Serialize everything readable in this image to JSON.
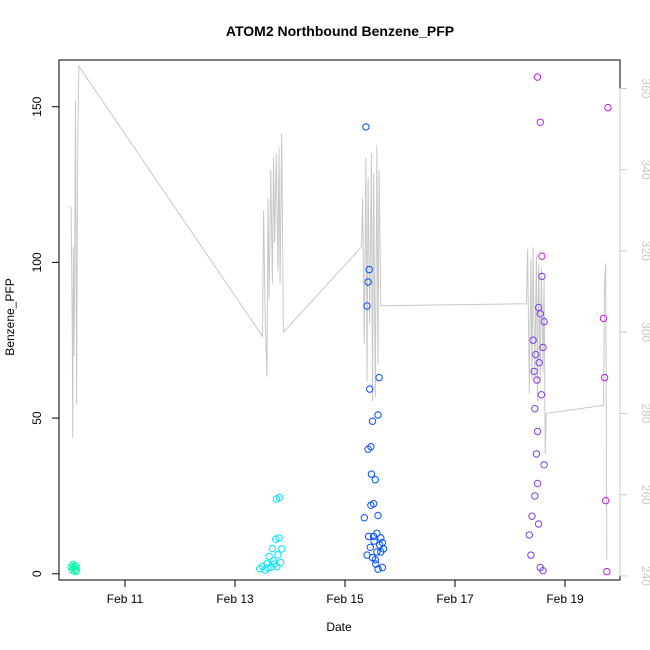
{
  "chart_data": {
    "type": "scatter",
    "title": "ATOM2 Northbound Benzene_PFP",
    "xlabel": "Date",
    "ylabel": "Benzene_PFP",
    "xlim": [
      9.8,
      20.0
    ],
    "ylim": [
      -2,
      165
    ],
    "x_ticks": [
      {
        "value": 11,
        "label": "Feb 11"
      },
      {
        "value": 13,
        "label": "Feb 13"
      },
      {
        "value": 15,
        "label": "Feb 15"
      },
      {
        "value": 17,
        "label": "Feb 17"
      },
      {
        "value": 19,
        "label": "Feb 19"
      }
    ],
    "y_ticks": [
      {
        "value": 0,
        "label": "0"
      },
      {
        "value": 50,
        "label": "50"
      },
      {
        "value": 100,
        "label": "100"
      },
      {
        "value": 150,
        "label": "150"
      }
    ],
    "y2_ticks": [
      {
        "value": 240,
        "label": "240"
      },
      {
        "value": 260,
        "label": "260"
      },
      {
        "value": 280,
        "label": "280"
      },
      {
        "value": 300,
        "label": "300"
      },
      {
        "value": 320,
        "label": "320"
      },
      {
        "value": 340,
        "label": "340"
      },
      {
        "value": 360,
        "label": "360"
      }
    ],
    "y2lim": [
      239,
      367
    ],
    "point_series": [
      {
        "color": "#00ffaa",
        "points": [
          [
            10.02,
            2.2
          ],
          [
            10.04,
            1.1
          ],
          [
            10.05,
            3.0
          ],
          [
            10.06,
            1.8
          ],
          [
            10.08,
            0.9
          ],
          [
            10.09,
            2.6
          ],
          [
            10.1,
            1.4
          ],
          [
            10.11,
            2.3
          ],
          [
            10.12,
            0.8
          ]
        ]
      },
      {
        "color": "#00e5ff",
        "points": [
          [
            13.45,
            1.6
          ],
          [
            13.5,
            2.4
          ],
          [
            13.55,
            1.2
          ],
          [
            13.58,
            3.2
          ],
          [
            13.6,
            1.9
          ],
          [
            13.62,
            5.6
          ],
          [
            13.65,
            2.1
          ],
          [
            13.68,
            8.1
          ],
          [
            13.7,
            4.1
          ],
          [
            13.72,
            3.1
          ],
          [
            13.74,
            11.1
          ],
          [
            13.75,
            24.0
          ],
          [
            13.76,
            2.3
          ],
          [
            13.78,
            6.1
          ],
          [
            13.8,
            11.5
          ],
          [
            13.81,
            24.5
          ],
          [
            13.83,
            3.6
          ],
          [
            13.85,
            8.0
          ]
        ]
      },
      {
        "color": "#0050ff",
        "points": [
          [
            15.35,
            18.0
          ],
          [
            15.38,
            143.5
          ],
          [
            15.4,
            86.0
          ],
          [
            15.42,
            93.7
          ],
          [
            15.44,
            97.7
          ],
          [
            15.45,
            59.3
          ],
          [
            15.47,
            40.8
          ],
          [
            15.48,
            32.0
          ],
          [
            15.5,
            49.0
          ],
          [
            15.52,
            22.5
          ],
          [
            15.55,
            30.2
          ],
          [
            15.58,
            13.0
          ],
          [
            15.6,
            51.0
          ],
          [
            15.62,
            63.0
          ],
          [
            15.4,
            6.0
          ],
          [
            15.43,
            12.0
          ],
          [
            15.46,
            8.5
          ],
          [
            15.5,
            5.2
          ],
          [
            15.53,
            10.5
          ],
          [
            15.56,
            3.1
          ],
          [
            15.58,
            7.0
          ],
          [
            15.6,
            1.5
          ],
          [
            15.63,
            9.2
          ],
          [
            15.65,
            11.5
          ],
          [
            15.68,
            2.0
          ],
          [
            15.7,
            8.0
          ],
          [
            15.42,
            40.0
          ],
          [
            15.47,
            22.0
          ],
          [
            15.52,
            12.0
          ],
          [
            15.55,
            4.5
          ],
          [
            15.6,
            18.7
          ],
          [
            15.65,
            7.0
          ],
          [
            15.68,
            10.0
          ]
        ]
      },
      {
        "color": "#7e3cf0",
        "points": [
          [
            18.35,
            12.5
          ],
          [
            18.38,
            6.0
          ],
          [
            18.4,
            18.5
          ],
          [
            18.42,
            75.0
          ],
          [
            18.44,
            65.0
          ],
          [
            18.45,
            53.0
          ],
          [
            18.47,
            70.4
          ],
          [
            18.49,
            62.2
          ],
          [
            18.5,
            45.7
          ],
          [
            18.52,
            85.5
          ],
          [
            18.53,
            67.8
          ],
          [
            18.55,
            83.5
          ],
          [
            18.57,
            57.5
          ],
          [
            18.58,
            95.5
          ],
          [
            18.6,
            72.7
          ],
          [
            18.62,
            81.0
          ],
          [
            18.45,
            25.0
          ],
          [
            18.48,
            38.5
          ],
          [
            18.5,
            29.0
          ],
          [
            18.52,
            16.0
          ],
          [
            18.55,
            2.0
          ],
          [
            18.6,
            1.0
          ],
          [
            18.62,
            35.0
          ]
        ]
      },
      {
        "color": "#c71bef",
        "points": [
          [
            18.5,
            159.5
          ],
          [
            18.55,
            145.0
          ],
          [
            18.58,
            102.0
          ],
          [
            19.7,
            82.0
          ],
          [
            19.72,
            63.0
          ],
          [
            19.74,
            23.5
          ],
          [
            19.76,
            0.7
          ],
          [
            19.78,
            149.7
          ]
        ]
      }
    ],
    "line_series": {
      "color": "#c8c8c8",
      "axis": "y2",
      "points": [
        [
          10.0,
          331.0
        ],
        [
          10.02,
          330.5
        ],
        [
          10.04,
          302.0
        ],
        [
          10.05,
          274.0
        ],
        [
          10.06,
          321.0
        ],
        [
          10.07,
          294.0
        ],
        [
          10.08,
          305.0
        ],
        [
          10.1,
          357.0
        ],
        [
          10.12,
          282.0
        ],
        [
          10.14,
          345.0
        ],
        [
          10.16,
          365.5
        ],
        [
          13.5,
          299.0
        ],
        [
          13.52,
          330.0
        ],
        [
          13.55,
          302.0
        ],
        [
          13.58,
          289.0
        ],
        [
          13.6,
          333.0
        ],
        [
          13.62,
          308.0
        ],
        [
          13.65,
          340.0
        ],
        [
          13.68,
          312.0
        ],
        [
          13.7,
          343.0
        ],
        [
          13.72,
          322.0
        ],
        [
          13.75,
          344.0
        ],
        [
          13.78,
          315.0
        ],
        [
          13.8,
          345.5
        ],
        [
          13.82,
          312.0
        ],
        [
          13.85,
          349.0
        ],
        [
          13.88,
          300.0
        ],
        [
          15.3,
          321.0
        ],
        [
          15.32,
          333.0
        ],
        [
          15.35,
          297.0
        ],
        [
          15.38,
          343.0
        ],
        [
          15.4,
          288.0
        ],
        [
          15.42,
          338.0
        ],
        [
          15.45,
          302.0
        ],
        [
          15.48,
          344.0
        ],
        [
          15.5,
          283.0
        ],
        [
          15.52,
          339.0
        ],
        [
          15.55,
          284.0
        ],
        [
          15.58,
          346.0
        ],
        [
          15.6,
          292.0
        ],
        [
          15.62,
          340.0
        ],
        [
          15.65,
          306.5
        ],
        [
          18.3,
          307.0
        ],
        [
          18.32,
          320.5
        ],
        [
          18.35,
          285.0
        ],
        [
          18.38,
          318.0
        ],
        [
          18.4,
          288.0
        ],
        [
          18.42,
          321.0
        ],
        [
          18.45,
          289.0
        ],
        [
          18.48,
          319.0
        ],
        [
          18.5,
          283.0
        ],
        [
          18.52,
          317.0
        ],
        [
          18.55,
          288.0
        ],
        [
          18.57,
          316.0
        ],
        [
          18.6,
          290.0
        ],
        [
          18.62,
          313.0
        ],
        [
          18.64,
          270.0
        ],
        [
          18.66,
          280.0
        ],
        [
          19.7,
          282.0
        ],
        [
          19.72,
          312.0
        ],
        [
          19.74,
          317.0
        ],
        [
          19.76,
          244.0
        ]
      ]
    }
  }
}
